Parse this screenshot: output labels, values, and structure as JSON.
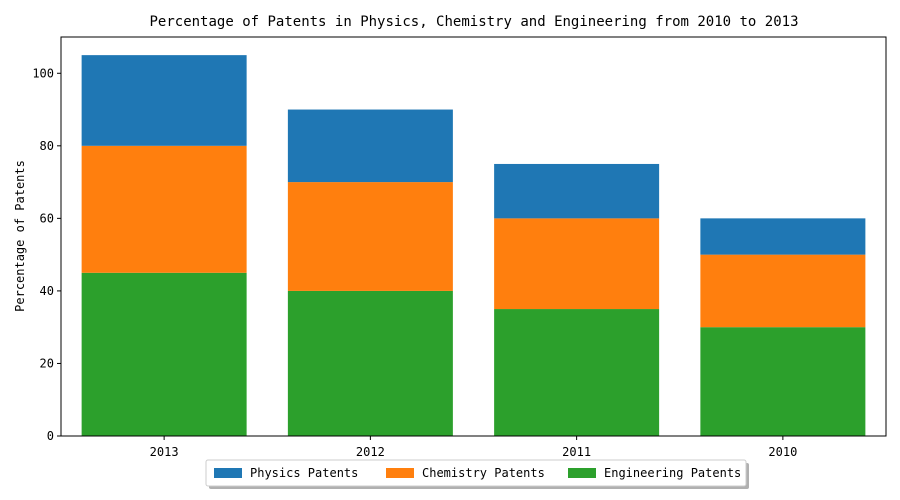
{
  "chart_data": {
    "type": "bar",
    "stacked": true,
    "title": "Percentage of Patents in Physics, Chemistry and Engineering from 2010 to 2013",
    "xlabel": "",
    "ylabel": "Percentage of Patents",
    "categories": [
      "2013",
      "2012",
      "2011",
      "2010"
    ],
    "series": [
      {
        "name": "Engineering Patents",
        "color": "#2ca02c",
        "values": [
          45,
          40,
          35,
          30
        ]
      },
      {
        "name": "Chemistry Patents",
        "color": "#ff7f0e",
        "values": [
          35,
          30,
          25,
          20
        ]
      },
      {
        "name": "Physics Patents",
        "color": "#1f77b4",
        "values": [
          25,
          20,
          15,
          10
        ]
      }
    ],
    "legend_order": [
      "Physics Patents",
      "Chemistry Patents",
      "Engineering Patents"
    ],
    "ylim": [
      0,
      110
    ],
    "yticks": [
      0,
      20,
      40,
      60,
      80,
      100
    ],
    "grid": false,
    "legend_position": "bottom-center"
  }
}
